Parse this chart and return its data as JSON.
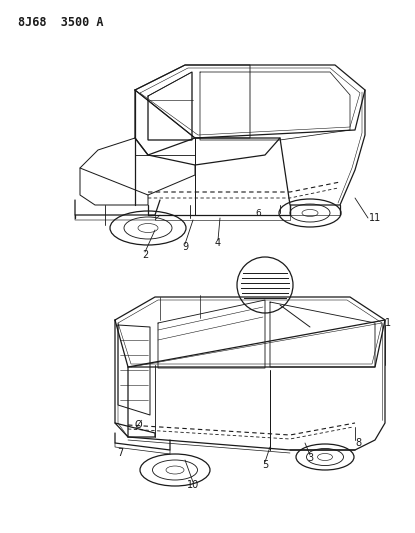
{
  "title": "8J68  3500 A",
  "bg": "#ffffff",
  "lc": "#1a1a1a",
  "title_fs": 8.5,
  "fig_w": 4.15,
  "fig_h": 5.33,
  "dpi": 100
}
